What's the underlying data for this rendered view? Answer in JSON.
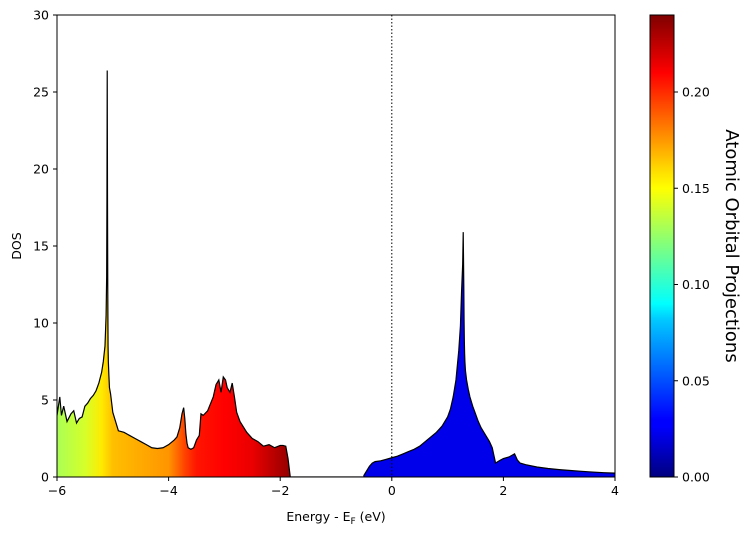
{
  "chart_data": {
    "type": "area",
    "xlabel_main": "Energy - E",
    "xlabel_sub": "F",
    "xlabel_tail": " (eV)",
    "ylabel": "DOS",
    "xlim": [
      -6,
      4
    ],
    "ylim": [
      0,
      30
    ],
    "xticks": [
      "−6",
      "−4",
      "−2",
      "0",
      "2",
      "4"
    ],
    "xtick_values": [
      -6,
      -4,
      -2,
      0,
      2,
      4
    ],
    "yticks": [
      "0",
      "5",
      "10",
      "15",
      "20",
      "25",
      "30"
    ],
    "ytick_values": [
      0,
      5,
      10,
      15,
      20,
      25,
      30
    ],
    "fermi_level": 0,
    "grid": false,
    "colormap": "jet",
    "colorbar": {
      "label": "Atomic Orbital Projections",
      "range": [
        0,
        0.24
      ],
      "ticks": [
        "0.00",
        "0.05",
        "0.10",
        "0.15",
        "0.20"
      ],
      "tick_values": [
        0,
        0.05,
        0.1,
        0.15,
        0.2
      ]
    },
    "series": [
      {
        "x": [
          -6.0,
          -5.95,
          -5.92,
          -5.88,
          -5.82,
          -5.75,
          -5.7,
          -5.65,
          -5.6,
          -5.55,
          -5.5,
          -5.45,
          -5.4,
          -5.35,
          -5.3,
          -5.25,
          -5.2,
          -5.17,
          -5.14,
          -5.12,
          -5.11,
          -5.105,
          -5.1,
          -5.095,
          -5.09,
          -5.085,
          -5.08,
          -5.07,
          -5.06,
          -5.04,
          -5.02,
          -5.0,
          -4.95,
          -4.9,
          -4.8,
          -4.7,
          -4.6,
          -4.5,
          -4.4,
          -4.3,
          -4.2,
          -4.1,
          -4.0,
          -3.9,
          -3.85,
          -3.8,
          -3.76,
          -3.73,
          -3.71,
          -3.69,
          -3.67,
          -3.65,
          -3.6,
          -3.55,
          -3.5,
          -3.45,
          -3.42,
          -3.38,
          -3.3,
          -3.2,
          -3.15,
          -3.1,
          -3.06,
          -3.02,
          -2.98,
          -2.95,
          -2.9,
          -2.86,
          -2.82,
          -2.78,
          -2.72,
          -2.6,
          -2.5,
          -2.4,
          -2.3,
          -2.2,
          -2.1,
          -2.0,
          -1.95,
          -1.9,
          -1.86,
          -1.83,
          -1.82
        ],
        "y": [
          4.0,
          5.2,
          4.0,
          4.6,
          3.6,
          4.1,
          4.3,
          3.5,
          3.8,
          3.9,
          4.6,
          4.8,
          5.1,
          5.3,
          5.6,
          6.1,
          6.8,
          7.5,
          8.5,
          10.5,
          13.0,
          18.0,
          26.4,
          18.0,
          12.0,
          8.5,
          7.5,
          6.6,
          5.8,
          5.4,
          4.8,
          4.2,
          3.6,
          3.0,
          2.9,
          2.7,
          2.5,
          2.3,
          2.1,
          1.9,
          1.85,
          1.9,
          2.1,
          2.4,
          2.6,
          3.2,
          4.1,
          4.5,
          3.8,
          2.8,
          2.2,
          1.9,
          1.8,
          1.9,
          2.4,
          2.7,
          4.1,
          4.0,
          4.3,
          5.2,
          6.0,
          6.3,
          5.5,
          6.5,
          6.3,
          5.8,
          5.5,
          6.1,
          5.2,
          4.2,
          3.6,
          2.9,
          2.5,
          2.3,
          2.0,
          2.1,
          1.9,
          2.05,
          2.05,
          2.0,
          1.2,
          0.3,
          0.0
        ]
      },
      {
        "x": [
          -1.82,
          -0.5,
          -0.5,
          -0.45,
          -0.4,
          -0.35,
          -0.3,
          -0.2,
          -0.1,
          0.0,
          0.1,
          0.2,
          0.3,
          0.4,
          0.5,
          0.6,
          0.7,
          0.8,
          0.9,
          1.0,
          1.05,
          1.1,
          1.15,
          1.2,
          1.23,
          1.25,
          1.27,
          1.28,
          1.29,
          1.295,
          1.3,
          1.305,
          1.31,
          1.32,
          1.34,
          1.37,
          1.4,
          1.45,
          1.5,
          1.55,
          1.6,
          1.65,
          1.7,
          1.75,
          1.8,
          1.83,
          1.86,
          1.9,
          1.95,
          2.0,
          2.1,
          2.2,
          2.25,
          2.3,
          2.4,
          2.6,
          2.8,
          3.0,
          3.2,
          3.4,
          3.6,
          3.8,
          4.0
        ],
        "y": [
          0.0,
          0.0,
          0.1,
          0.4,
          0.7,
          0.9,
          1.0,
          1.05,
          1.15,
          1.25,
          1.35,
          1.5,
          1.65,
          1.8,
          2.0,
          2.3,
          2.6,
          2.9,
          3.3,
          3.9,
          4.4,
          5.2,
          6.3,
          8.2,
          9.8,
          12.0,
          13.8,
          15.9,
          12.5,
          10.2,
          8.8,
          8.0,
          7.5,
          6.9,
          6.3,
          5.7,
          5.2,
          4.6,
          4.1,
          3.6,
          3.2,
          2.9,
          2.6,
          2.3,
          1.9,
          1.4,
          0.9,
          1.0,
          1.1,
          1.2,
          1.3,
          1.5,
          1.1,
          0.9,
          0.8,
          0.65,
          0.55,
          0.48,
          0.42,
          0.37,
          0.32,
          0.28,
          0.25
        ]
      }
    ],
    "projection_color_stops": {
      "x": [
        -6.0,
        -5.5,
        -5.2,
        -5.0,
        -4.5,
        -4.0,
        -3.7,
        -3.5,
        -3.0,
        -2.5,
        -2.0,
        -1.82
      ],
      "v": [
        0.13,
        0.14,
        0.155,
        0.165,
        0.17,
        0.175,
        0.195,
        0.205,
        0.21,
        0.215,
        0.23,
        0.235
      ]
    },
    "projection_value_conduction": 0.025
  }
}
